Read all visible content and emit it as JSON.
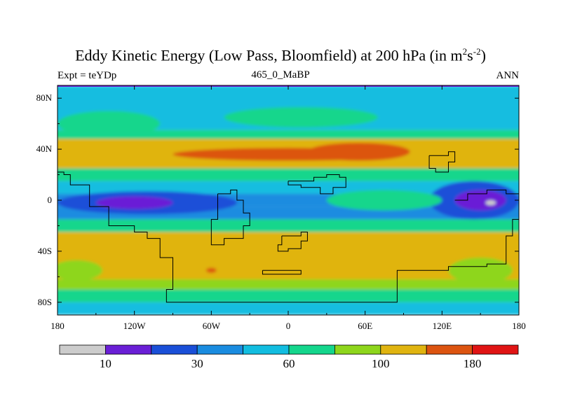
{
  "chart_data": {
    "type": "heatmap",
    "title_main": "Eddy Kinetic Energy (Low Pass, Bloomfield) at 200 hPa (in m",
    "title_unit_sup1": "2",
    "title_unit_mid": "s",
    "title_unit_sup2": "-2",
    "title_close": ")",
    "subtitle_left": "Expt = teYDp",
    "subtitle_center": "465_0_MaBP",
    "subtitle_right": "ANN",
    "xlim": [
      -180,
      180
    ],
    "ylim": [
      -90,
      90
    ],
    "x_ticks": [
      {
        "value": -180,
        "label": "180"
      },
      {
        "value": -120,
        "label": "120W"
      },
      {
        "value": -60,
        "label": "60W"
      },
      {
        "value": 0,
        "label": "0"
      },
      {
        "value": 60,
        "label": "60E"
      },
      {
        "value": 120,
        "label": "120E"
      },
      {
        "value": 180,
        "label": "180"
      }
    ],
    "y_ticks": [
      {
        "value": 80,
        "label": "80N"
      },
      {
        "value": 40,
        "label": "40N"
      },
      {
        "value": 0,
        "label": "0"
      },
      {
        "value": -40,
        "label": "40S"
      },
      {
        "value": -80,
        "label": "80S"
      }
    ],
    "colorbar": {
      "colors": [
        "#cccccc",
        "#6a1fd6",
        "#1a4fd8",
        "#1a8ce0",
        "#12bde0",
        "#14d68c",
        "#8ed61c",
        "#e0b410",
        "#dc5410",
        "#e01414"
      ],
      "levels": [
        5,
        10,
        20,
        30,
        45,
        60,
        80,
        100,
        140,
        180
      ],
      "labels": [
        {
          "value": 10,
          "label": "10"
        },
        {
          "value": 30,
          "label": "30"
        },
        {
          "value": 60,
          "label": "60"
        },
        {
          "value": 100,
          "label": "100"
        },
        {
          "value": 180,
          "label": "180"
        }
      ]
    },
    "field_bands": [
      {
        "lat_top": 90,
        "lat_bottom": 55,
        "level": 4
      },
      {
        "lat_top": 55,
        "lat_bottom": 48,
        "level": 5
      },
      {
        "lat_top": 48,
        "lat_bottom": 25,
        "level": 7
      },
      {
        "lat_top": 25,
        "lat_bottom": 15,
        "level": 5
      },
      {
        "lat_top": 15,
        "lat_bottom": 5,
        "level": 4
      },
      {
        "lat_top": 5,
        "lat_bottom": -5,
        "level": 3
      },
      {
        "lat_top": -5,
        "lat_bottom": -15,
        "level": 3
      },
      {
        "lat_top": -15,
        "lat_bottom": -25,
        "level": 5
      },
      {
        "lat_top": -25,
        "lat_bottom": -62,
        "level": 7
      },
      {
        "lat_top": -62,
        "lat_bottom": -70,
        "level": 6
      },
      {
        "lat_top": -70,
        "lat_bottom": -80,
        "level": 5
      },
      {
        "lat_top": -80,
        "lat_bottom": -90,
        "level": 4
      }
    ],
    "field_blobs": [
      {
        "lon": 0,
        "lat": 36,
        "rlon": 90,
        "rlat": 5,
        "level": 8
      },
      {
        "lon": 55,
        "lat": 38,
        "rlon": 40,
        "rlat": 7,
        "level": 8
      },
      {
        "lon": -140,
        "lat": 60,
        "rlon": 40,
        "rlat": 10,
        "level": 5
      },
      {
        "lon": 10,
        "lat": 65,
        "rlon": 60,
        "rlat": 8,
        "level": 5
      },
      {
        "lon": -110,
        "lat": -2,
        "rlon": 70,
        "rlat": 9,
        "level": 2
      },
      {
        "lon": -120,
        "lat": -2,
        "rlon": 30,
        "rlat": 5,
        "level": 1
      },
      {
        "lon": 145,
        "lat": 0,
        "rlon": 35,
        "rlat": 15,
        "level": 2
      },
      {
        "lon": 150,
        "lat": 0,
        "rlon": 20,
        "rlat": 8,
        "level": 1
      },
      {
        "lon": 158,
        "lat": -2,
        "rlon": 4,
        "rlat": 2,
        "level": 0
      },
      {
        "lon": 75,
        "lat": 0,
        "rlon": 45,
        "rlat": 8,
        "level": 5
      },
      {
        "lon": -165,
        "lat": -55,
        "rlon": 20,
        "rlat": 8,
        "level": 6
      },
      {
        "lon": 150,
        "lat": -55,
        "rlon": 25,
        "rlat": 10,
        "level": 6
      },
      {
        "lon": -60,
        "lat": -55,
        "rlon": 4,
        "rlat": 2,
        "level": 8
      }
    ],
    "continent_outlines": [
      [
        [
          -180,
          22
        ],
        [
          -175,
          20
        ],
        [
          -170,
          12
        ],
        [
          -155,
          -5
        ],
        [
          -140,
          -20
        ],
        [
          -120,
          -25
        ],
        [
          -110,
          -30
        ],
        [
          -100,
          -45
        ],
        [
          -90,
          -55
        ],
        [
          -90,
          -70
        ],
        [
          -95,
          -80
        ],
        [
          -80,
          -80
        ],
        [
          85,
          -80
        ],
        [
          85,
          -55
        ],
        [
          100,
          -55
        ],
        [
          125,
          -52
        ],
        [
          155,
          -50
        ],
        [
          170,
          -28
        ],
        [
          175,
          -15
        ],
        [
          180,
          -10
        ]
      ],
      [
        [
          -55,
          5
        ],
        [
          -45,
          8
        ],
        [
          -40,
          0
        ],
        [
          -35,
          -10
        ],
        [
          -30,
          -20
        ],
        [
          -35,
          -30
        ],
        [
          -50,
          -35
        ],
        [
          -60,
          -30
        ],
        [
          -60,
          -15
        ],
        [
          -55,
          5
        ]
      ],
      [
        [
          0,
          15
        ],
        [
          20,
          18
        ],
        [
          30,
          20
        ],
        [
          40,
          18
        ],
        [
          45,
          10
        ],
        [
          35,
          5
        ],
        [
          25,
          10
        ],
        [
          10,
          12
        ],
        [
          0,
          15
        ]
      ],
      [
        [
          -5,
          -28
        ],
        [
          10,
          -25
        ],
        [
          15,
          -32
        ],
        [
          10,
          -38
        ],
        [
          0,
          -40
        ],
        [
          -8,
          -35
        ],
        [
          -5,
          -28
        ]
      ],
      [
        [
          -20,
          -55
        ],
        [
          10,
          -55
        ],
        [
          10,
          -58
        ],
        [
          -20,
          -58
        ],
        [
          -20,
          -55
        ]
      ],
      [
        [
          110,
          35
        ],
        [
          125,
          38
        ],
        [
          130,
          30
        ],
        [
          125,
          22
        ],
        [
          115,
          25
        ],
        [
          110,
          35
        ]
      ],
      [
        [
          130,
          0
        ],
        [
          140,
          5
        ],
        [
          155,
          8
        ],
        [
          170,
          5
        ],
        [
          180,
          10
        ]
      ]
    ]
  }
}
